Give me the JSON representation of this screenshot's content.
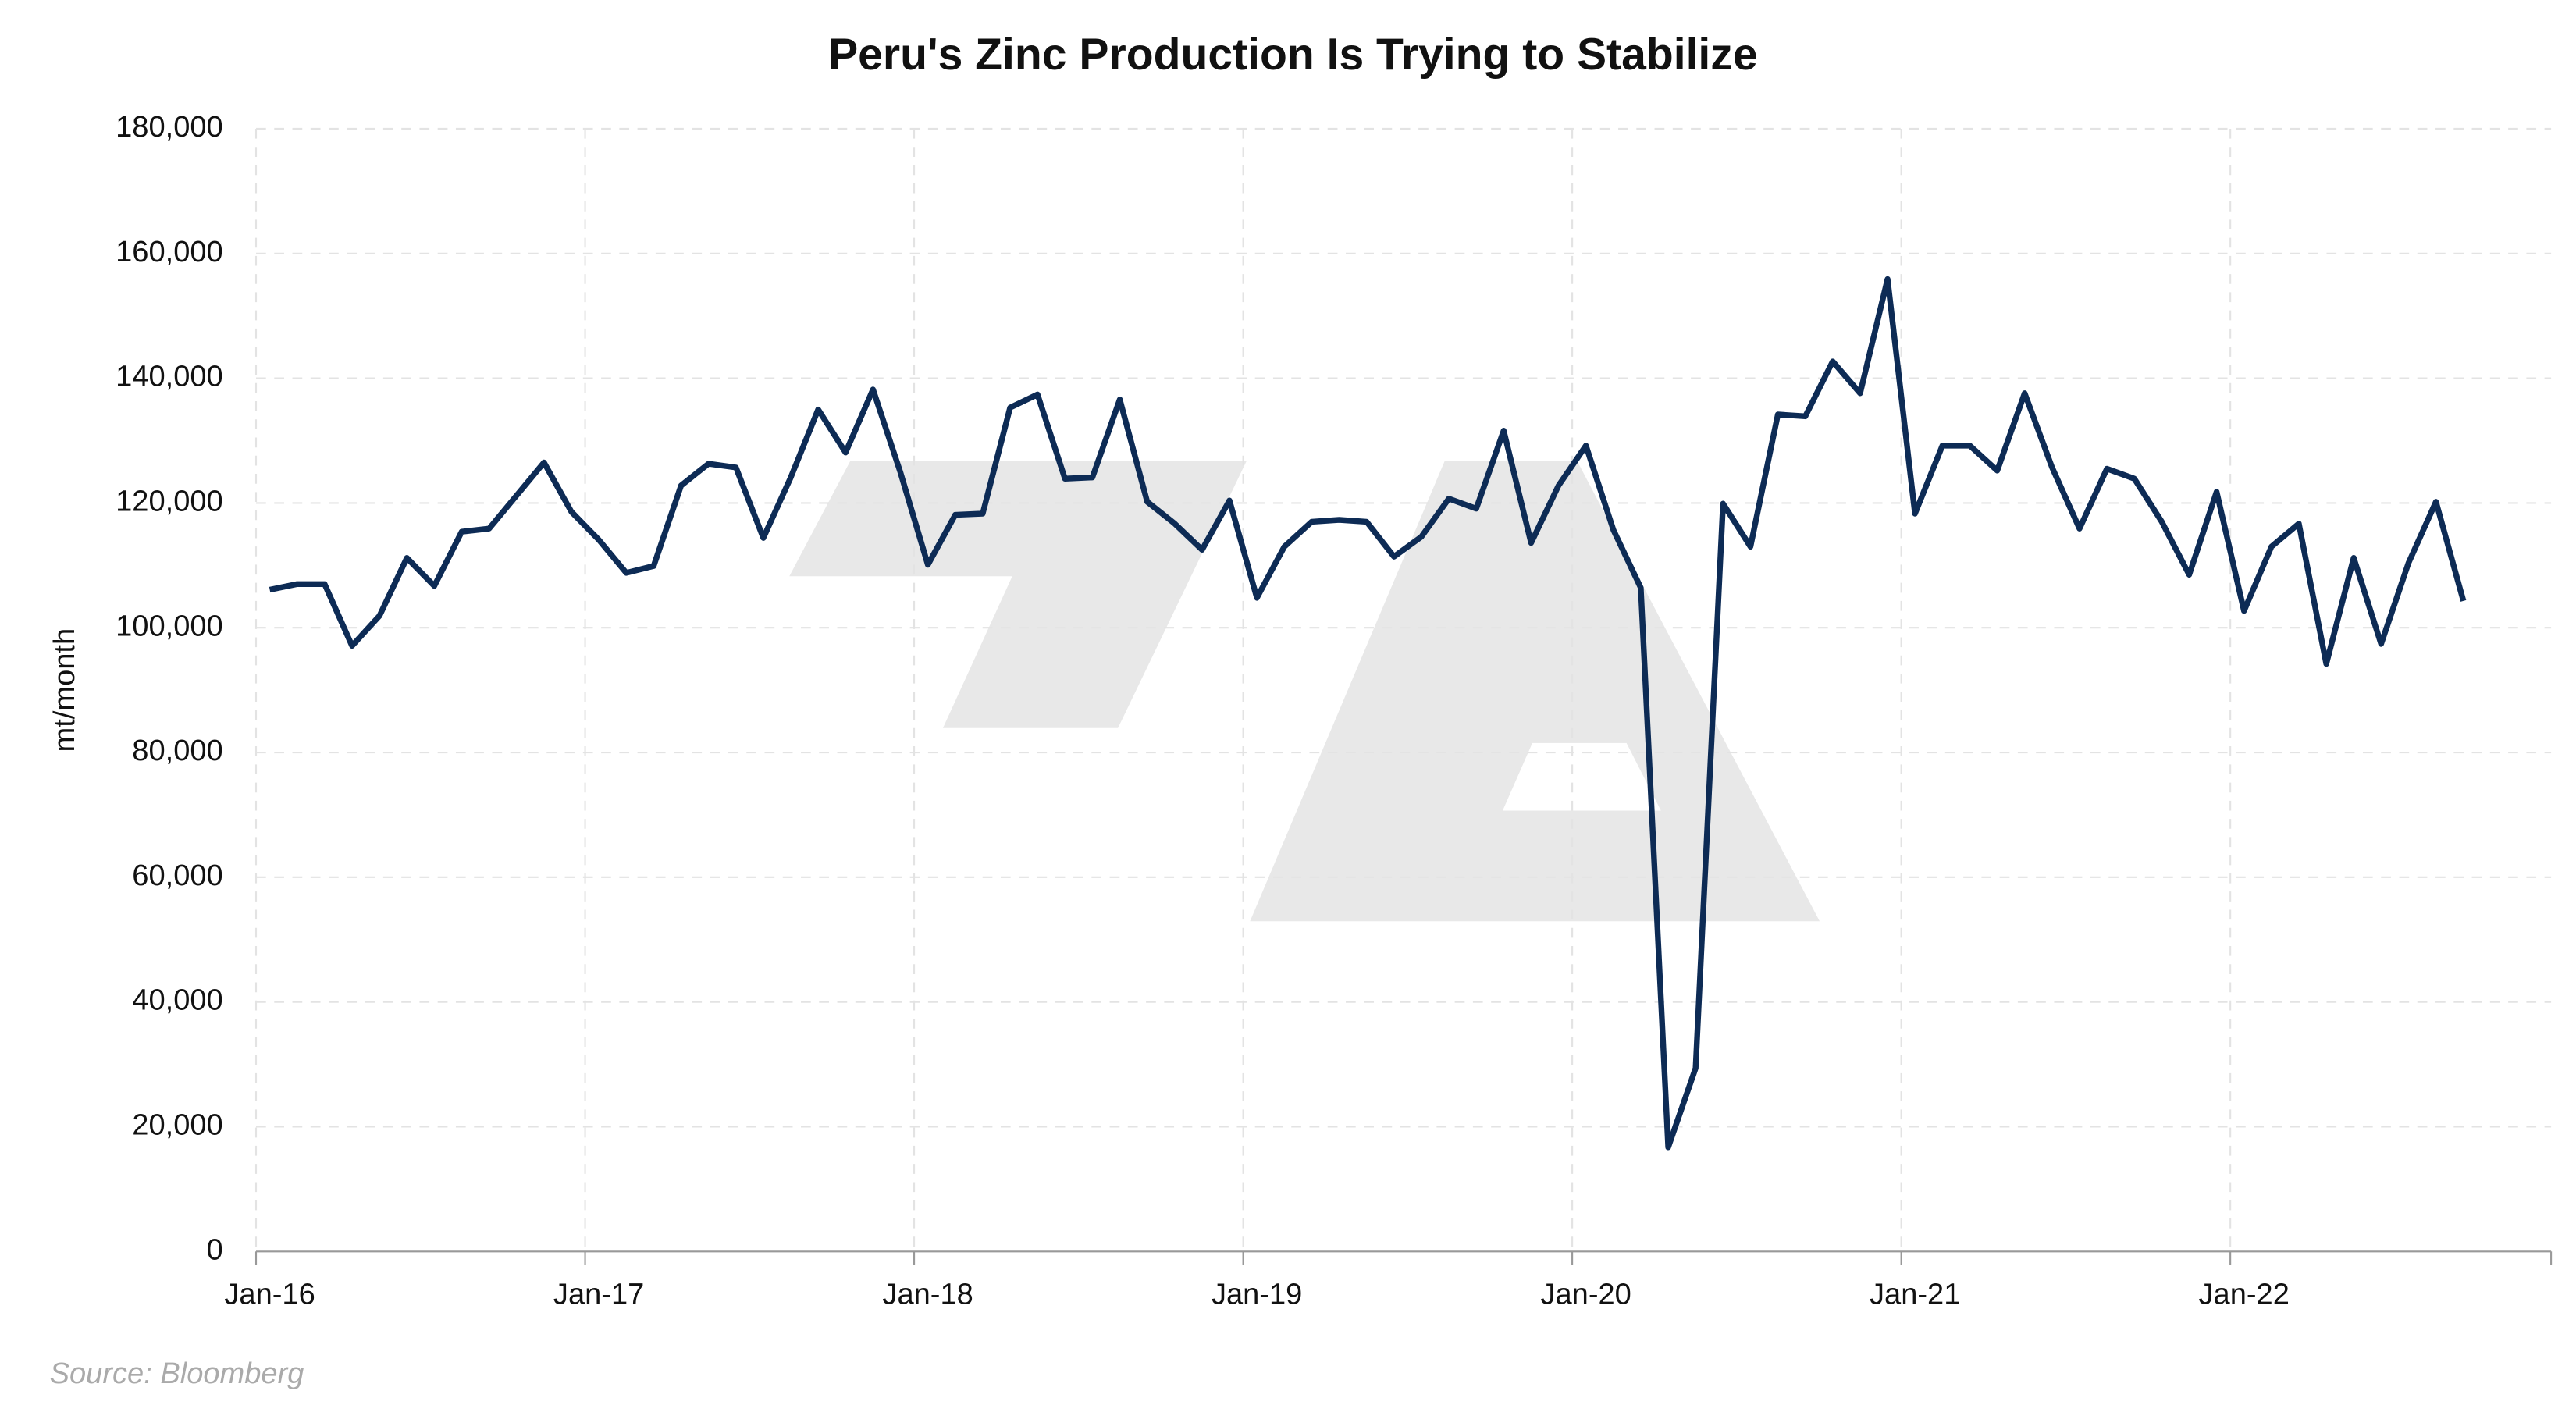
{
  "chart_data": {
    "type": "line",
    "title": "Peru's Zinc Production Is Trying to Stabilize",
    "y_label": "mt/month",
    "source": "Source: Bloomberg",
    "categories": [
      "Jan-16",
      null,
      null,
      null,
      null,
      null,
      null,
      null,
      null,
      null,
      null,
      null,
      "Jan-17",
      null,
      null,
      null,
      null,
      null,
      null,
      null,
      null,
      null,
      null,
      null,
      "Jan-18",
      null,
      null,
      null,
      null,
      null,
      null,
      null,
      null,
      null,
      null,
      null,
      "Jan-19",
      null,
      null,
      null,
      null,
      null,
      null,
      null,
      null,
      null,
      null,
      null,
      "Jan-20",
      null,
      null,
      null,
      null,
      null,
      null,
      null,
      null,
      null,
      null,
      null,
      "Jan-21",
      null,
      null,
      null,
      null,
      null,
      null,
      null,
      null,
      null,
      null,
      null,
      "Jan-22",
      null,
      null,
      null,
      null,
      null,
      null,
      null,
      null,
      null,
      null,
      null
    ],
    "series": [
      {
        "name": "Zinc production",
        "color": "#0d2b55",
        "values": [
          106100,
          107000,
          107000,
          97100,
          101900,
          111200,
          106700,
          115400,
          115900,
          121200,
          126500,
          118600,
          114100,
          108800,
          109900,
          122800,
          126300,
          125700,
          114400,
          124100,
          135000,
          128100,
          138200,
          124900,
          110100,
          118100,
          118300,
          135300,
          137400,
          123900,
          124100,
          136600,
          120200,
          116700,
          112500,
          120400,
          104800,
          113000,
          117000,
          117300,
          117000,
          111400,
          114600,
          120700,
          119100,
          131600,
          113600,
          122800,
          129200,
          115700,
          106400,
          16700,
          29400,
          119900,
          113000,
          134200,
          133900,
          142700,
          137600,
          155900,
          118300,
          129200,
          129200,
          125200,
          137600,
          125700,
          115900,
          125500,
          123900,
          117000,
          108500,
          121800,
          102700,
          113000,
          116700,
          94200,
          111200,
          97400,
          110400,
          120200,
          104300,
          null,
          null,
          null
        ]
      }
    ],
    "ylim": [
      0,
      180000
    ],
    "yticks": [
      0,
      {
        "value": 20000,
        "label": "20,000"
      },
      {
        "value": 40000,
        "label": "40,000"
      },
      {
        "value": 60000,
        "label": "60,000"
      },
      {
        "value": 80000,
        "label": "80,000"
      },
      {
        "value": 100000,
        "label": "100,000"
      },
      {
        "value": 120000,
        "label": "120,000"
      },
      {
        "value": 140000,
        "label": "140,000"
      },
      {
        "value": 160000,
        "label": "160,000"
      },
      {
        "value": 180000,
        "label": "180,000"
      }
    ],
    "grid": true
  }
}
